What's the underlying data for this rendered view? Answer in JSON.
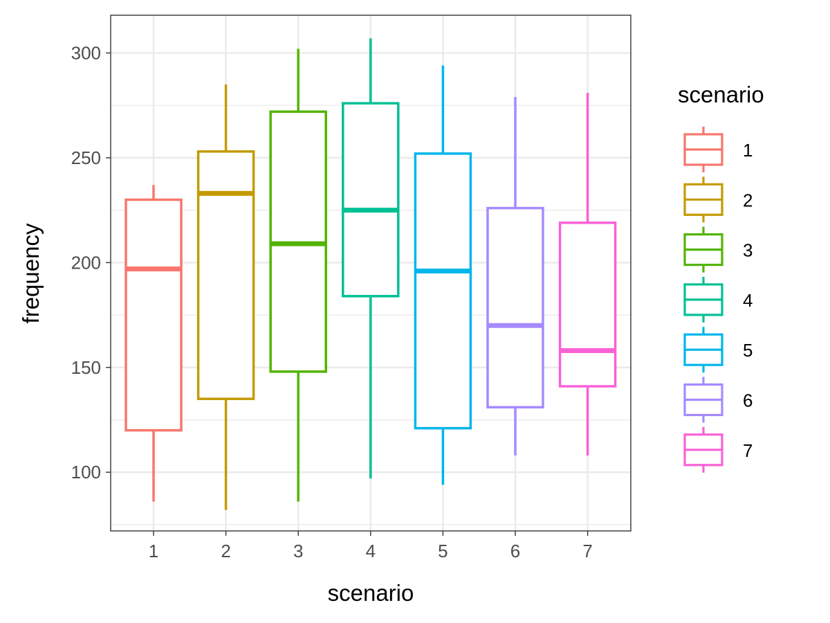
{
  "chart_data": {
    "type": "boxplot",
    "title": "",
    "xlabel": "scenario",
    "ylabel": "frequency",
    "ylim": [
      72,
      318
    ],
    "yticks": [
      100,
      150,
      200,
      250,
      300
    ],
    "grid": true,
    "legend": {
      "title": "scenario",
      "placement": "right"
    },
    "categories": [
      "1",
      "2",
      "3",
      "4",
      "5",
      "6",
      "7"
    ],
    "colors": [
      "#F8766D",
      "#C49A00",
      "#53B400",
      "#00C094",
      "#00B6EB",
      "#A58AFF",
      "#FB61D7"
    ],
    "boxes": [
      {
        "category": "1",
        "min": 86,
        "q1": 120,
        "median": 197,
        "q3": 230,
        "max": 237
      },
      {
        "category": "2",
        "min": 82,
        "q1": 135,
        "median": 233,
        "q3": 253,
        "max": 285
      },
      {
        "category": "3",
        "min": 86,
        "q1": 148,
        "median": 209,
        "q3": 272,
        "max": 302
      },
      {
        "category": "4",
        "min": 97,
        "q1": 184,
        "median": 225,
        "q3": 276,
        "max": 307
      },
      {
        "category": "5",
        "min": 94,
        "q1": 121,
        "median": 196,
        "q3": 252,
        "max": 294
      },
      {
        "category": "6",
        "min": 108,
        "q1": 131,
        "median": 170,
        "q3": 226,
        "max": 279
      },
      {
        "category": "7",
        "min": 108,
        "q1": 141,
        "median": 158,
        "q3": 219,
        "max": 281
      }
    ]
  }
}
